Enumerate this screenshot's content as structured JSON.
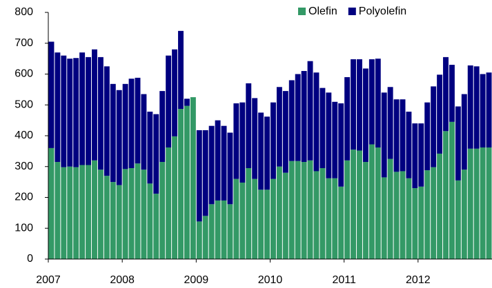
{
  "chart_data": {
    "type": "bar",
    "stacked": true,
    "categories": [
      "2007",
      null,
      null,
      null,
      null,
      null,
      null,
      null,
      null,
      null,
      null,
      null,
      "2008",
      null,
      null,
      null,
      null,
      null,
      null,
      null,
      null,
      null,
      null,
      null,
      "2009",
      null,
      null,
      null,
      null,
      null,
      null,
      null,
      null,
      null,
      null,
      null,
      "2010",
      null,
      null,
      null,
      null,
      null,
      null,
      null,
      null,
      null,
      null,
      null,
      "2011",
      null,
      null,
      null,
      null,
      null,
      null,
      null,
      null,
      null,
      null,
      null,
      "2012",
      null,
      null,
      null,
      null,
      null,
      null,
      null,
      null,
      null,
      null,
      null
    ],
    "series": [
      {
        "name": "Olefin",
        "color": "#339966",
        "values": [
          360,
          315,
          298,
          300,
          298,
          305,
          305,
          320,
          290,
          270,
          250,
          240,
          292,
          295,
          310,
          290,
          245,
          212,
          315,
          362,
          398,
          487,
          497,
          525,
          122,
          140,
          178,
          190,
          190,
          178,
          260,
          248,
          295,
          260,
          225,
          225,
          260,
          300,
          280,
          318,
          318,
          315,
          320,
          285,
          295,
          262,
          262,
          235,
          320,
          355,
          352,
          315,
          372,
          362,
          265,
          325,
          283,
          285,
          262,
          230,
          235,
          288,
          298,
          342,
          415,
          445,
          255,
          290,
          358,
          358,
          362,
          362
        ]
      },
      {
        "name": "Polyolefin",
        "color": "#000080",
        "values": [
          345,
          355,
          362,
          350,
          354,
          365,
          350,
          360,
          365,
          355,
          318,
          308,
          276,
          290,
          278,
          245,
          233,
          258,
          230,
          298,
          282,
          253,
          23,
          0,
          296,
          278,
          254,
          260,
          242,
          232,
          245,
          260,
          275,
          262,
          250,
          237,
          248,
          258,
          265,
          262,
          282,
          295,
          322,
          320,
          260,
          278,
          248,
          270,
          270,
          293,
          296,
          303,
          276,
          288,
          275,
          233,
          235,
          233,
          216,
          210,
          205,
          220,
          262,
          256,
          240,
          185,
          240,
          245,
          270,
          267,
          238,
          243
        ]
      }
    ],
    "ylim": [
      0,
      800
    ],
    "yticks": [
      0,
      100,
      200,
      300,
      400,
      500,
      600,
      700,
      800
    ],
    "legend": "top-right"
  }
}
